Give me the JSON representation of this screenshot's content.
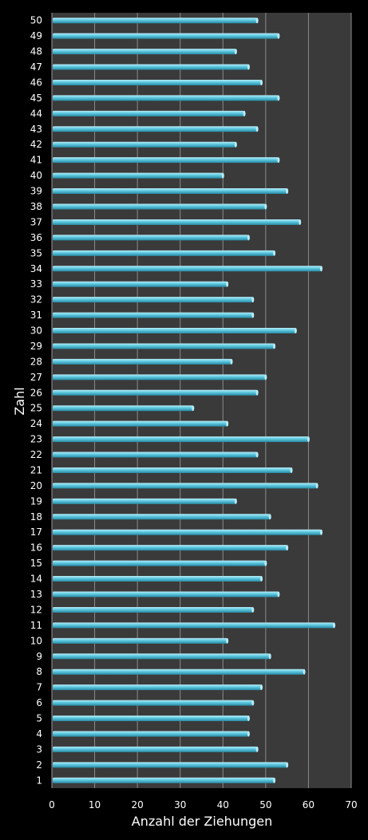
{
  "chart_data": {
    "type": "bar",
    "orientation": "horizontal",
    "xlabel": "Anzahl der Ziehungen",
    "ylabel": "Zahl",
    "xlim": [
      0,
      70
    ],
    "xticks": [
      0,
      10,
      20,
      30,
      40,
      50,
      60,
      70
    ],
    "grid": true,
    "categories": [
      "1",
      "2",
      "3",
      "4",
      "5",
      "6",
      "7",
      "8",
      "9",
      "10",
      "11",
      "12",
      "13",
      "14",
      "15",
      "16",
      "17",
      "18",
      "19",
      "20",
      "21",
      "22",
      "23",
      "24",
      "25",
      "26",
      "27",
      "28",
      "29",
      "30",
      "31",
      "32",
      "33",
      "34",
      "35",
      "36",
      "37",
      "38",
      "39",
      "40",
      "41",
      "42",
      "43",
      "44",
      "45",
      "46",
      "47",
      "48",
      "49",
      "50"
    ],
    "values": [
      52,
      55,
      48,
      46,
      46,
      47,
      49,
      59,
      51,
      41,
      66,
      47,
      53,
      49,
      50,
      55,
      63,
      51,
      43,
      62,
      56,
      48,
      60,
      41,
      33,
      48,
      50,
      42,
      52,
      57,
      47,
      47,
      41,
      63,
      52,
      46,
      58,
      50,
      55,
      40,
      53,
      43,
      48,
      45,
      53,
      49,
      46,
      43,
      53,
      48
    ]
  },
  "colors": {
    "background": "#000000",
    "plot_area": "#3a3a3a",
    "gridline": "#8a8a8a",
    "bar": "#5cc8e0",
    "bar_highlight": "#b8ecf7",
    "bar_shadow": "#2a8aa3"
  }
}
